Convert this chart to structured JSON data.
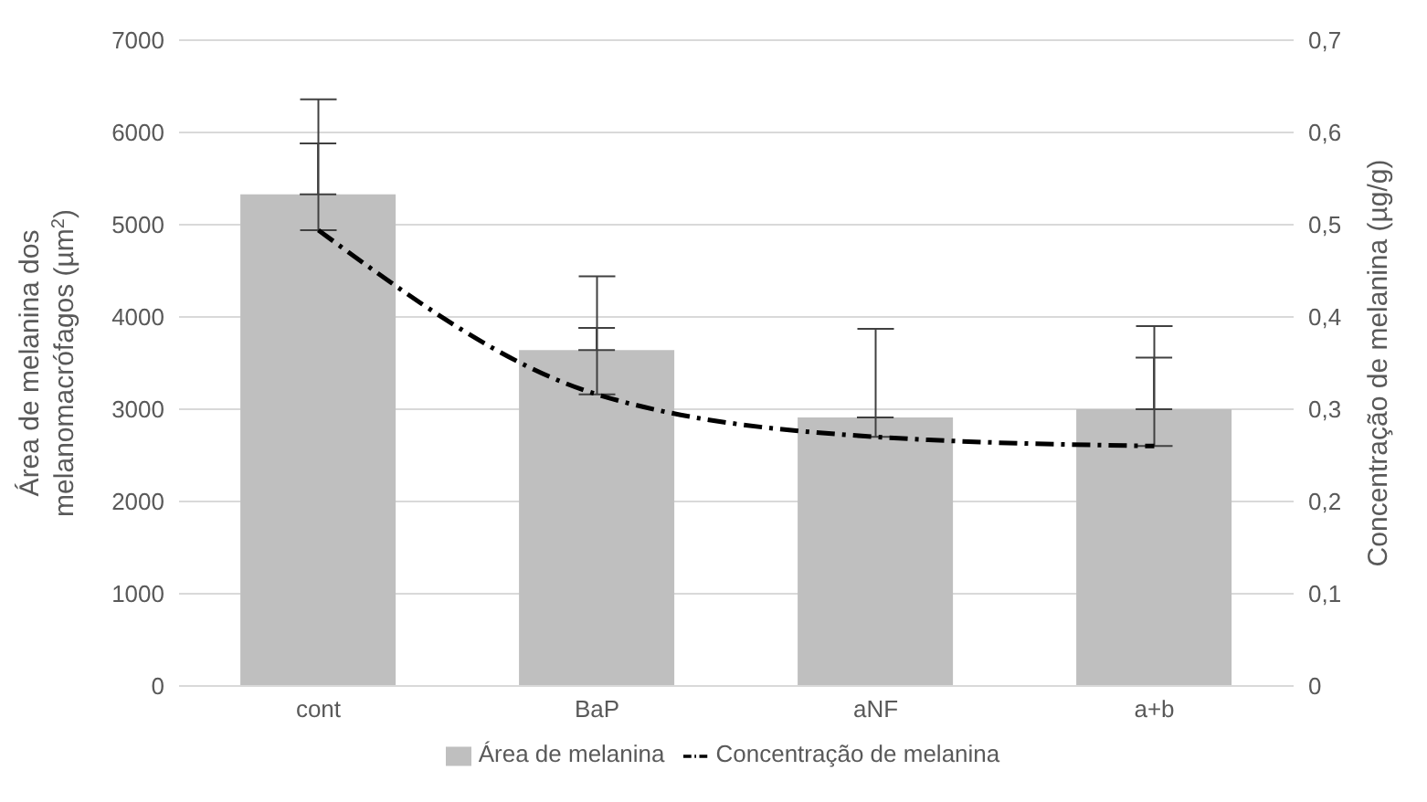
{
  "chart_data": {
    "type": "bar",
    "categories": [
      "cont",
      "BaP",
      "aNF",
      "a+b"
    ],
    "ylabel": "Área de melanina dos melanomacrófagos (µm$^{2}$)",
    "y2label": "Concentração de melanina (µg/g)",
    "series": [
      {
        "name": "Área de melanina",
        "color": "#bfbfbf",
        "values": [
          5330,
          3640,
          2910,
          3000
        ],
        "errors": [
          [
            5330,
            5880
          ],
          [
            3640,
            3880
          ],
          null,
          [
            3000,
            3560
          ]
        ]
      },
      {
        "name": "Concentração de melanina",
        "type": "line",
        "axis": "y2",
        "color": "#000000",
        "line_style": "dashdot",
        "marker": "none",
        "values": [
          0.494,
          0.316,
          0.27,
          0.26
        ],
        "errors": [
          [
            0.494,
            0.636
          ],
          [
            0.316,
            0.444
          ],
          [
            0.27,
            0.387
          ],
          [
            0.26,
            0.39
          ]
        ]
      }
    ],
    "ylim": [
      0,
      7000
    ],
    "yticks": [
      0,
      1000,
      2000,
      3000,
      4000,
      5000,
      6000,
      7000
    ],
    "y2lim": [
      0,
      0.7
    ],
    "y2ticks": [
      0,
      {
        "value": 0.1,
        "label": "0,1"
      },
      {
        "value": 0.2,
        "label": "0,2"
      },
      {
        "value": 0.3,
        "label": "0,3"
      },
      {
        "value": 0.4,
        "label": "0,4"
      },
      {
        "value": 0.5,
        "label": "0,5"
      },
      {
        "value": 0.6,
        "label": "0,6"
      },
      {
        "value": 0.7,
        "label": "0,7"
      }
    ],
    "grid": "y",
    "legend": "bottom"
  }
}
